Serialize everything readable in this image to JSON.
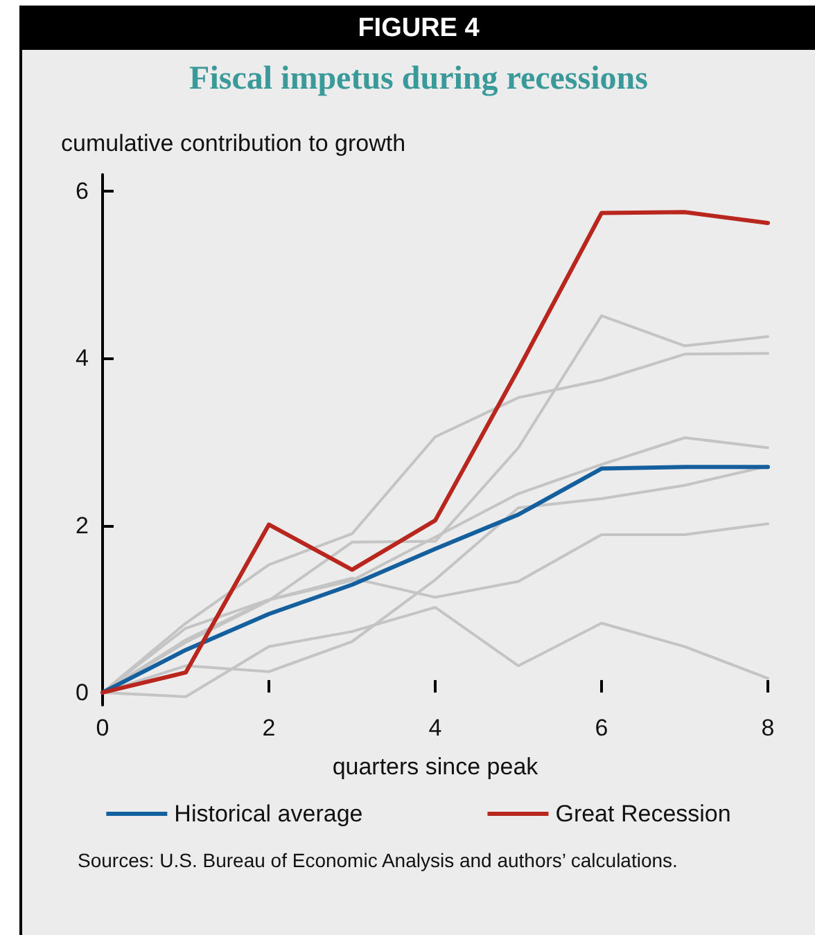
{
  "chart_data": {
    "type": "line",
    "title": "FIGURE 4",
    "subtitle": "Fiscal impetus during recessions",
    "ylabel": "cumulative contribution to growth",
    "xlabel": "quarters since peak",
    "x": [
      0,
      1,
      2,
      3,
      4,
      5,
      6,
      7,
      8
    ],
    "series": [
      {
        "color": "#c4c4c4",
        "values": [
          0,
          0.6,
          1.1,
          1.8,
          1.81,
          2.93,
          4.51,
          4.15,
          4.26
        ]
      },
      {
        "color": "#c4c4c4",
        "values": [
          0,
          0.83,
          1.53,
          1.9,
          3.06,
          3.53,
          3.74,
          4.05,
          4.06
        ]
      },
      {
        "color": "#c4c4c4",
        "values": [
          0,
          0.77,
          1.11,
          1.34,
          1.86,
          2.38,
          2.73,
          3.05,
          2.93
        ]
      },
      {
        "color": "#c4c4c4",
        "values": [
          0,
          0.32,
          0.25,
          0.61,
          1.35,
          2.21,
          2.32,
          2.48,
          2.71
        ]
      },
      {
        "color": "#c4c4c4",
        "values": [
          0,
          0.63,
          1.11,
          1.37,
          1.14,
          1.33,
          1.89,
          1.89,
          2.02
        ]
      },
      {
        "color": "#c4c4c4",
        "values": [
          0,
          -0.05,
          0.55,
          0.73,
          1.02,
          0.32,
          0.83,
          0.55,
          0.17
        ]
      },
      {
        "name": "Historical average",
        "color": "#145f9e",
        "values": [
          0,
          0.51,
          0.94,
          1.29,
          1.72,
          2.13,
          2.68,
          2.7,
          2.7
        ]
      },
      {
        "name": "Great Recession",
        "color": "#b8261e",
        "values": [
          0,
          0.24,
          2.01,
          1.47,
          2.06,
          3.87,
          5.74,
          5.75,
          5.62
        ]
      }
    ],
    "xlim": [
      0,
      8
    ],
    "xticks": [
      0,
      2,
      4,
      6,
      8
    ],
    "ylim": [
      -0.15,
      6.2
    ],
    "yticks": [
      0,
      2,
      4,
      6
    ],
    "grid": false,
    "legend": "bottom",
    "marker": "none",
    "line_style": "solid",
    "annotations": [
      "Sources: U.S. Bureau of Economic Analysis and authors’ calculations."
    ]
  }
}
